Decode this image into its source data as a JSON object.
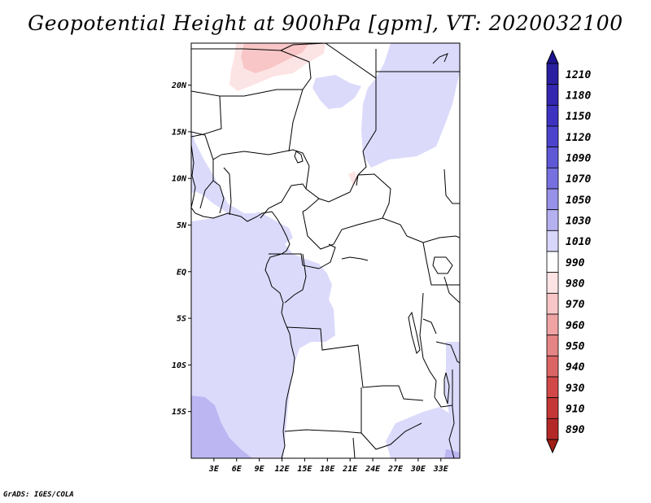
{
  "title": "Geopotential Height at 900hPa [gpm], VT: 2020032100",
  "credit": "GrADS: IGES/COLA",
  "map": {
    "lon_range": [
      0,
      35.5
    ],
    "lat_range": [
      -20,
      24.5
    ],
    "lon_ticks": [
      {
        "value": 3,
        "label": "3E"
      },
      {
        "value": 6,
        "label": "6E"
      },
      {
        "value": 9,
        "label": "9E"
      },
      {
        "value": 12,
        "label": "12E"
      },
      {
        "value": 15,
        "label": "15E"
      },
      {
        "value": 18,
        "label": "18E"
      },
      {
        "value": 21,
        "label": "21E"
      },
      {
        "value": 24,
        "label": "24E"
      },
      {
        "value": 27,
        "label": "27E"
      },
      {
        "value": 30,
        "label": "30E"
      },
      {
        "value": 33,
        "label": "33E"
      }
    ],
    "lat_ticks": [
      {
        "value": 20,
        "label": "20N"
      },
      {
        "value": 15,
        "label": "15N"
      },
      {
        "value": 10,
        "label": "10N"
      },
      {
        "value": 5,
        "label": "5N"
      },
      {
        "value": 0,
        "label": "EQ"
      },
      {
        "value": -5,
        "label": "5S"
      },
      {
        "value": -10,
        "label": "10S"
      },
      {
        "value": -15,
        "label": "15S"
      }
    ]
  },
  "colorbar": {
    "top_color": "#1e1490",
    "bottom_color": "#a01e14",
    "levels": [
      {
        "label": "1210",
        "color": "#2a1fa0"
      },
      {
        "label": "1180",
        "color": "#3326b0"
      },
      {
        "label": "1150",
        "color": "#3d33c0"
      },
      {
        "label": "1120",
        "color": "#4b43cc"
      },
      {
        "label": "1090",
        "color": "#5e57d6"
      },
      {
        "label": "1070",
        "color": "#7670e0"
      },
      {
        "label": "1050",
        "color": "#9791e8"
      },
      {
        "label": "1030",
        "color": "#b5b1f0"
      },
      {
        "label": "1010",
        "color": "#d8d6fa"
      },
      {
        "label": "990",
        "color": "#ffffff"
      },
      {
        "label": "980",
        "color": "#fde4e4"
      },
      {
        "label": "970",
        "color": "#f8c6c6"
      },
      {
        "label": "960",
        "color": "#efa3a3"
      },
      {
        "label": "950",
        "color": "#e58484"
      },
      {
        "label": "940",
        "color": "#db6565"
      },
      {
        "label": "930",
        "color": "#d24848"
      },
      {
        "label": "910",
        "color": "#c53636"
      },
      {
        "label": "890",
        "color": "#b52828"
      }
    ]
  }
}
